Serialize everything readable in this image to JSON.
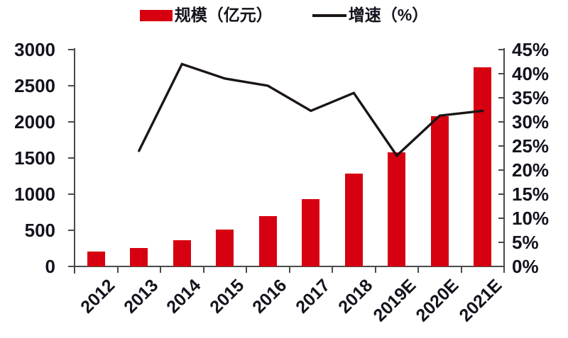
{
  "legend": {
    "items": [
      {
        "label": "规模（亿元）",
        "swatch": "bar"
      },
      {
        "label": "增速（%）",
        "swatch": "line"
      }
    ]
  },
  "chart_data": {
    "type": "bar",
    "subtype": "bar-line-combo",
    "categories": [
      "2012",
      "2013",
      "2014",
      "2015",
      "2016",
      "2017",
      "2018",
      "2019E",
      "2020E",
      "2021E"
    ],
    "series": [
      {
        "name": "规模（亿元）",
        "type": "bar",
        "axis": "left",
        "color": "#d70011",
        "values": [
          205,
          255,
          360,
          505,
          700,
          930,
          1280,
          1575,
          2075,
          2755
        ]
      },
      {
        "name": "增速（%）",
        "type": "line",
        "axis": "right",
        "color": "#1b1515",
        "values": [
          null,
          24,
          42,
          39,
          37.5,
          32.3,
          36,
          23,
          31.3,
          32.3
        ]
      }
    ],
    "left_axis": {
      "min": 0,
      "max": 3000,
      "tick_labels": [
        "0",
        "500",
        "1000",
        "1500",
        "2000",
        "2500",
        "3000"
      ]
    },
    "right_axis": {
      "min": 0,
      "max": 45,
      "tick_labels": [
        "0%",
        "5%",
        "10%",
        "15%",
        "20%",
        "25%",
        "30%",
        "35%",
        "40%",
        "45%"
      ]
    },
    "title": "",
    "grid": false,
    "legend_position": "top",
    "axis_color": "#4a4a4a",
    "text_color": "#13131d"
  }
}
